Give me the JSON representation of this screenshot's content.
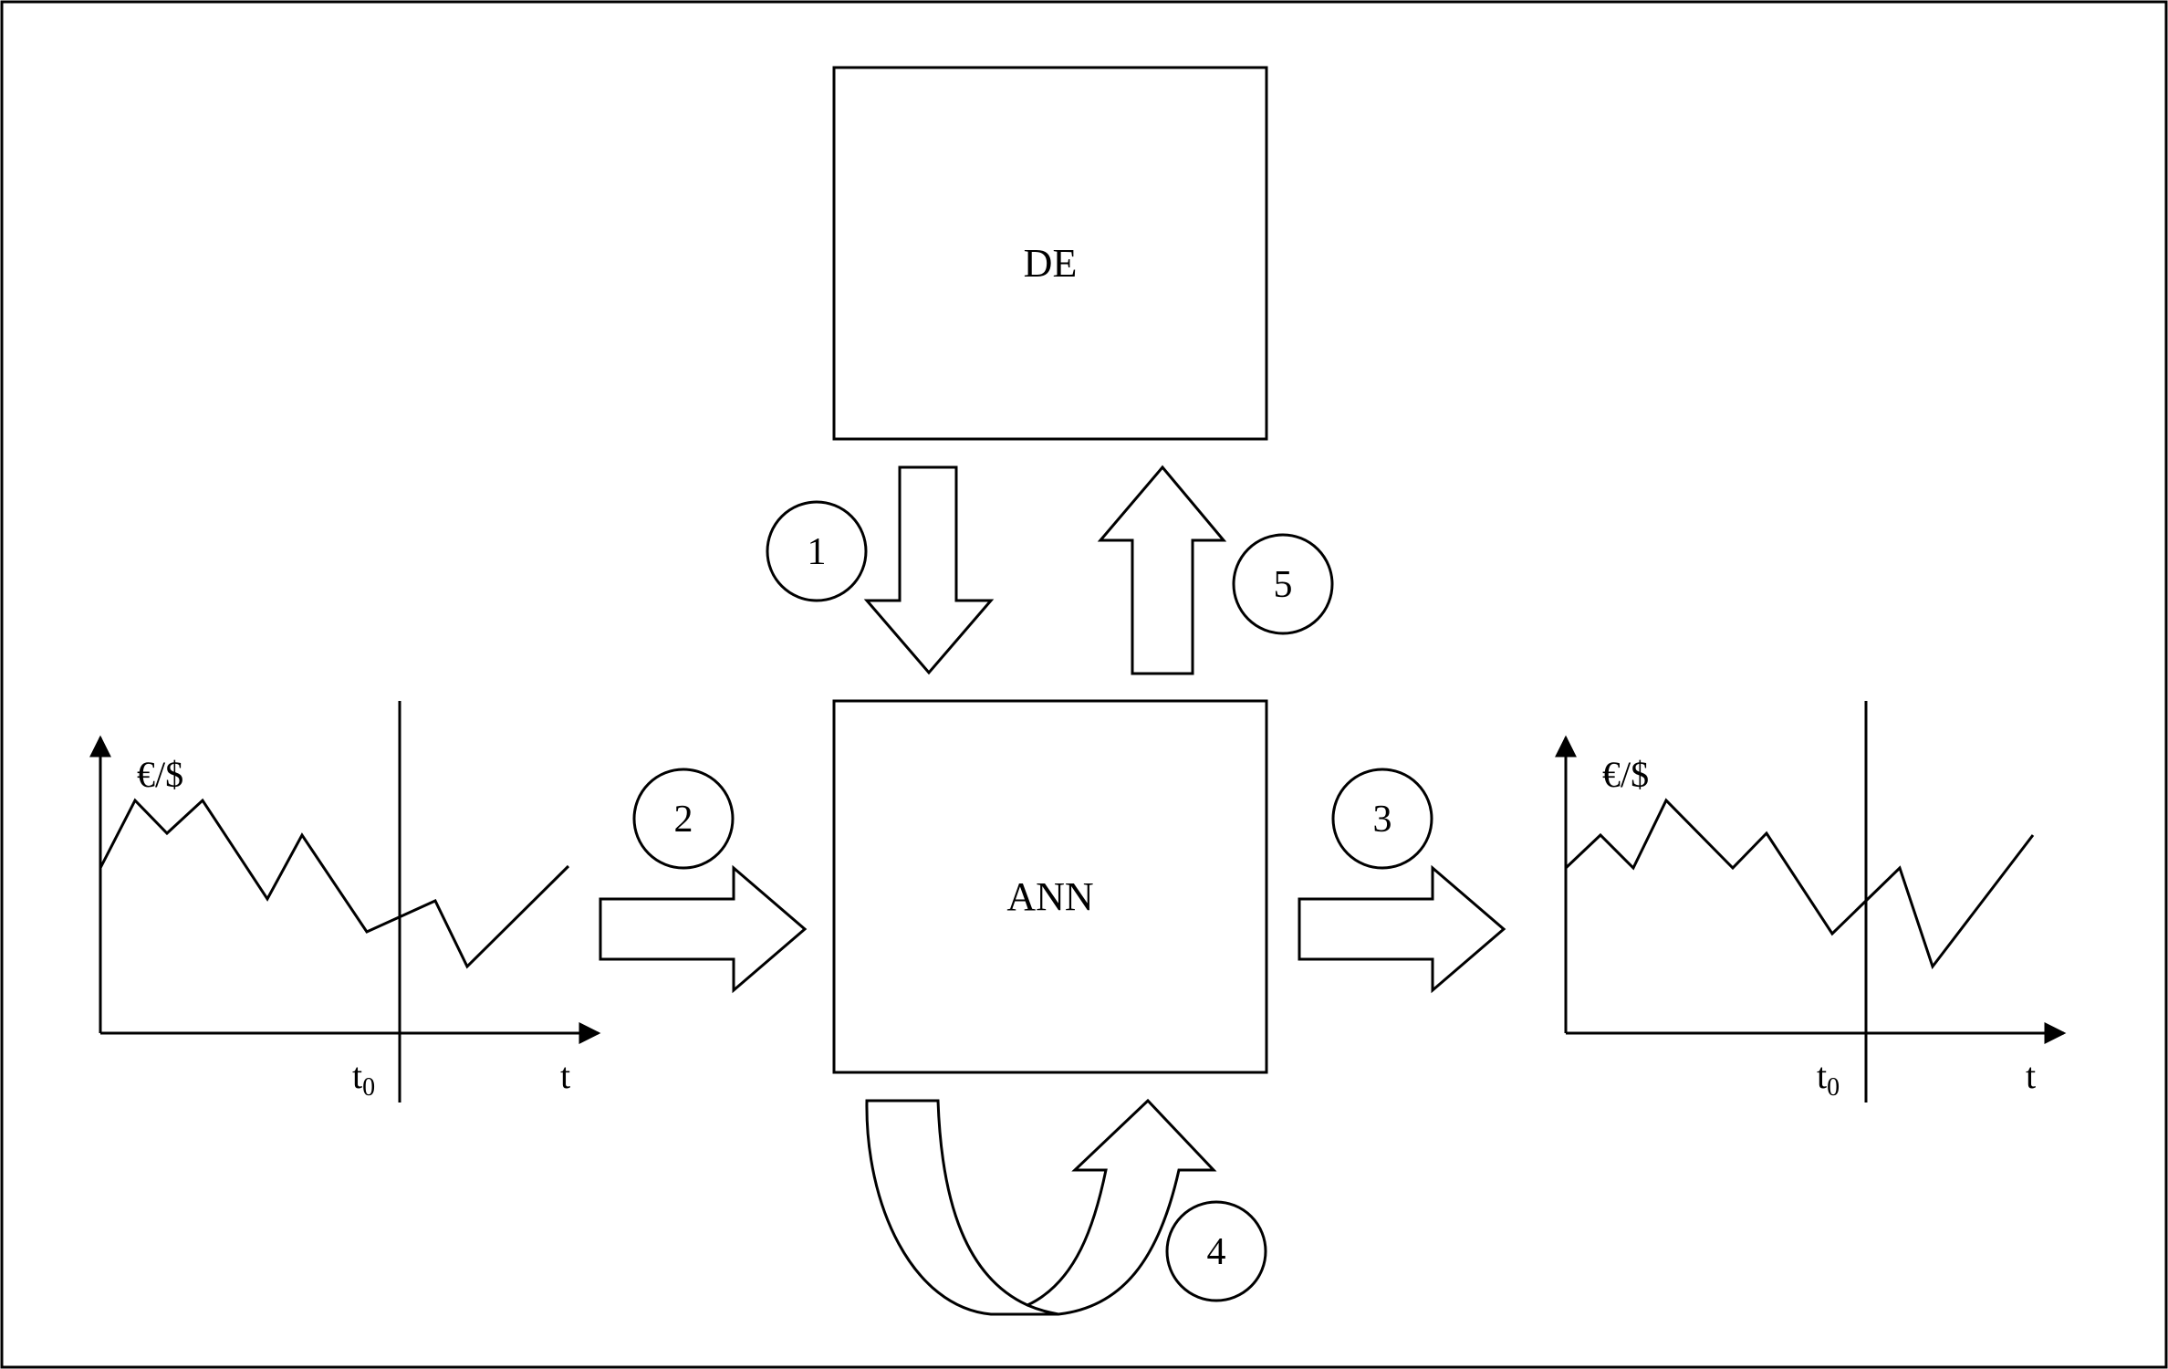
{
  "blocks": {
    "de": {
      "label": "DE"
    },
    "ann": {
      "label": "ANN"
    }
  },
  "steps": [
    {
      "id": "1",
      "label": "1"
    },
    {
      "id": "2",
      "label": "2"
    },
    {
      "id": "3",
      "label": "3"
    },
    {
      "id": "4",
      "label": "4"
    },
    {
      "id": "5",
      "label": "5"
    }
  ],
  "input_plot": {
    "y_label": "€/$",
    "x_label": "t",
    "marker_label": "t",
    "marker_subscript": "0"
  },
  "output_plot": {
    "y_label": "€/$",
    "x_label": "t",
    "marker_label": "t",
    "marker_subscript": "0"
  }
}
